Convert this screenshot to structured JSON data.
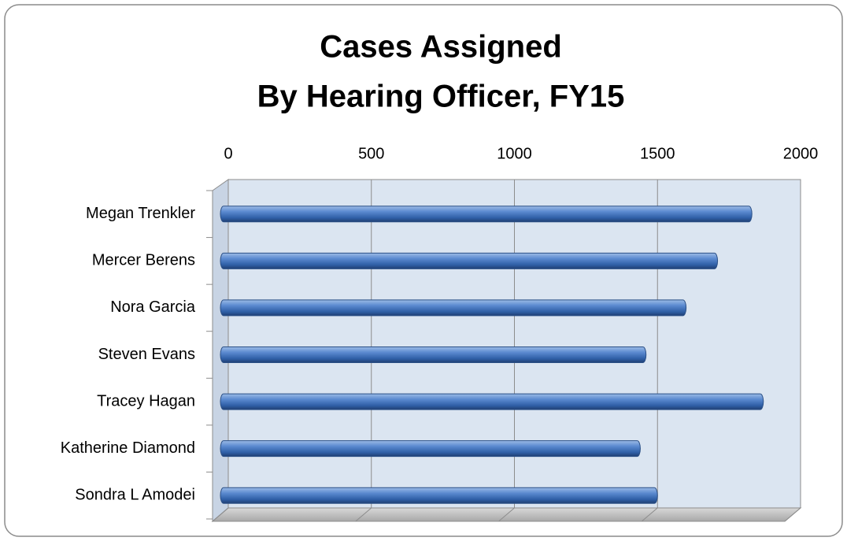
{
  "chart_data": {
    "type": "bar",
    "orientation": "horizontal",
    "title": [
      "Cases Assigned",
      "By Hearing Officer, FY15"
    ],
    "categories": [
      "Megan Trenkler",
      "Mercer Berens",
      "Nora Garcia",
      "Steven Evans",
      "Tracey Hagan",
      "Katherine Diamond",
      "Sondra L Amodei"
    ],
    "values": [
      1830,
      1710,
      1600,
      1460,
      1870,
      1440,
      1500
    ],
    "color": "#4f81bd",
    "xlim": [
      0,
      2000
    ],
    "xticks": [
      0,
      500,
      1000,
      1500,
      2000
    ],
    "grid": true
  }
}
